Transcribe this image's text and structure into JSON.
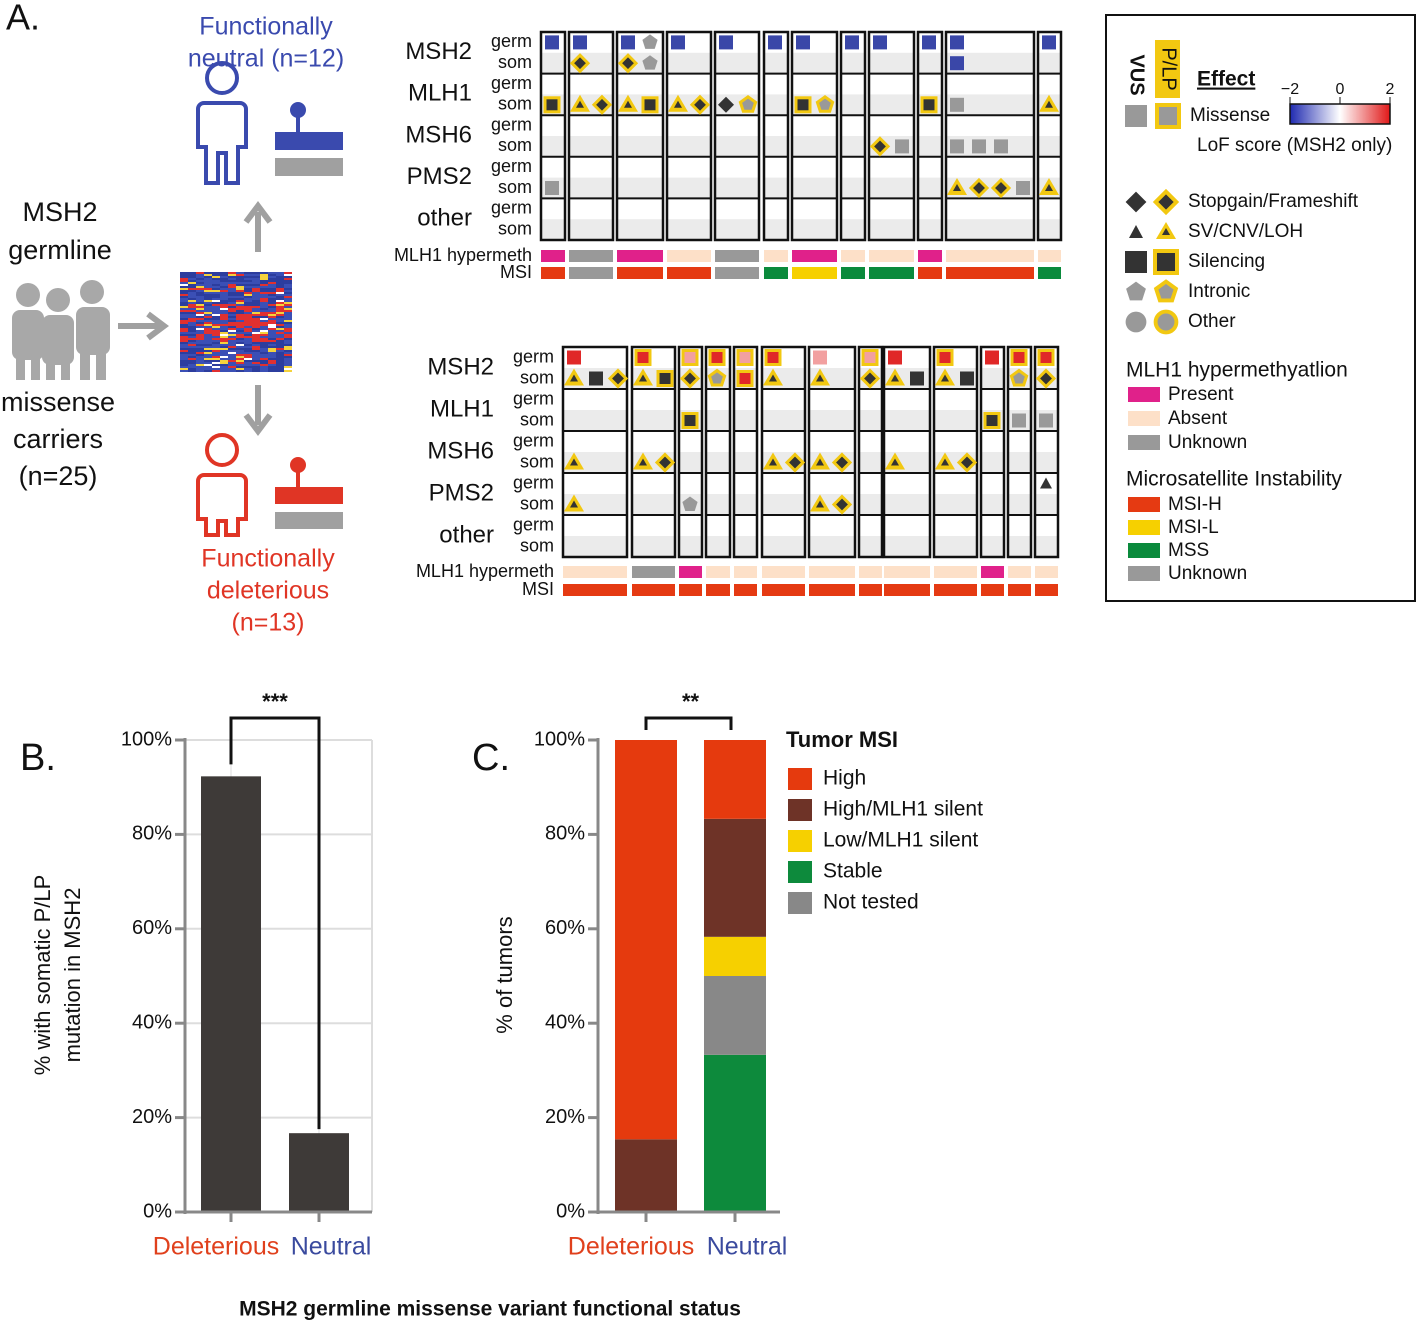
{
  "panel_a": {
    "label": "A.",
    "neutral_group": [
      "Functionally",
      "neutral (n=12)"
    ],
    "carriers": [
      "MSH2",
      "germline",
      "missense",
      "carriers",
      "(n=25)"
    ],
    "deleterious_group": [
      "Functionally",
      "deleterious",
      "(n=13)"
    ],
    "oncoprint": {
      "genes": [
        "MSH2",
        "MLH1",
        "MSH6",
        "PMS2",
        "other"
      ],
      "germ": "germ",
      "som": "som",
      "hypermeth_label": "MLH1 hypermeth",
      "msi_label": "MSI"
    },
    "legend": {
      "vus": "VUS",
      "plp": "P/LP",
      "effect": "Effect",
      "missense": "Missense",
      "lof_label": "LoF score (MSH2 only)",
      "lof_ticks": [
        {
          "value": -2,
          "label": "−2"
        },
        0,
        2
      ],
      "effects": [
        "Stopgain/Frameshift",
        "SV/CNV/LOH",
        "Silencing",
        "Intronic",
        "Other"
      ],
      "hypermeth_title": "MLH1 hypermethyatlion",
      "hypermeth_items": [
        "Present",
        "Absent",
        "Unknown"
      ],
      "hypermeth_colors": [
        "#e0218a",
        "#fde0c8",
        "#999999"
      ],
      "msi_title": "Microsatellite Instability",
      "msi_items": [
        "MSI-H",
        "MSI-L",
        "MSS",
        "Unknown"
      ],
      "msi_colors": [
        "#e53a12",
        "#f6d000",
        "#0a8a3c",
        "#999999"
      ]
    }
  },
  "chart_data": [
    {
      "type": "bar",
      "label": "B.",
      "y_label": [
        "% with somatic P/LP",
        "mutation in MSH2"
      ],
      "annotation": "***",
      "categories": [
        "Deleterious",
        "Neutral"
      ],
      "category_colors": [
        "#e0401c",
        "#3a4a9e"
      ],
      "values": [
        92.3,
        16.7
      ],
      "color": "#3e3a38",
      "ylim": [
        0,
        100
      ],
      "yticks": [
        {
          "value": 0,
          "label": "0%"
        },
        {
          "value": 20,
          "label": "20%"
        },
        {
          "value": 40,
          "label": "40%"
        },
        {
          "value": 60,
          "label": "60%"
        },
        {
          "value": 80,
          "label": "80%"
        },
        {
          "value": 100,
          "label": "100%"
        }
      ],
      "grid": true
    },
    {
      "type": "stacked_bar",
      "label": "C.",
      "y_label": "% of tumors",
      "annotation": "**",
      "legend_title": "Tumor MSI",
      "categories": [
        "Deleterious",
        "Neutral"
      ],
      "category_colors": [
        "#e0401c",
        "#3a4a9e"
      ],
      "series": [
        {
          "name": "High",
          "color": "#e53a0e",
          "values": [
            84.6,
            16.7
          ]
        },
        {
          "name": "High/MLH1 silent",
          "color": "#6e3327",
          "values": [
            15.4,
            25
          ]
        },
        {
          "name": "Low/MLH1 silent",
          "color": "#f6d000",
          "values": [
            0,
            8.3
          ]
        },
        {
          "name": "Stable",
          "color": "#0d8a3c",
          "values": [
            0,
            33.3
          ]
        },
        {
          "name": "Not tested",
          "color": "#888888",
          "values": [
            0,
            16.7
          ]
        }
      ],
      "ylim": [
        0,
        100
      ],
      "yticks": [
        {
          "value": 0,
          "label": "0%"
        },
        {
          "value": 20,
          "label": "20%"
        },
        {
          "value": 40,
          "label": "40%"
        },
        {
          "value": 60,
          "label": "60%"
        },
        {
          "value": 80,
          "label": "80%"
        },
        {
          "value": 100,
          "label": "100%"
        }
      ],
      "grid": false
    }
  ],
  "footer": "MSH2 germline missense variant functional status"
}
